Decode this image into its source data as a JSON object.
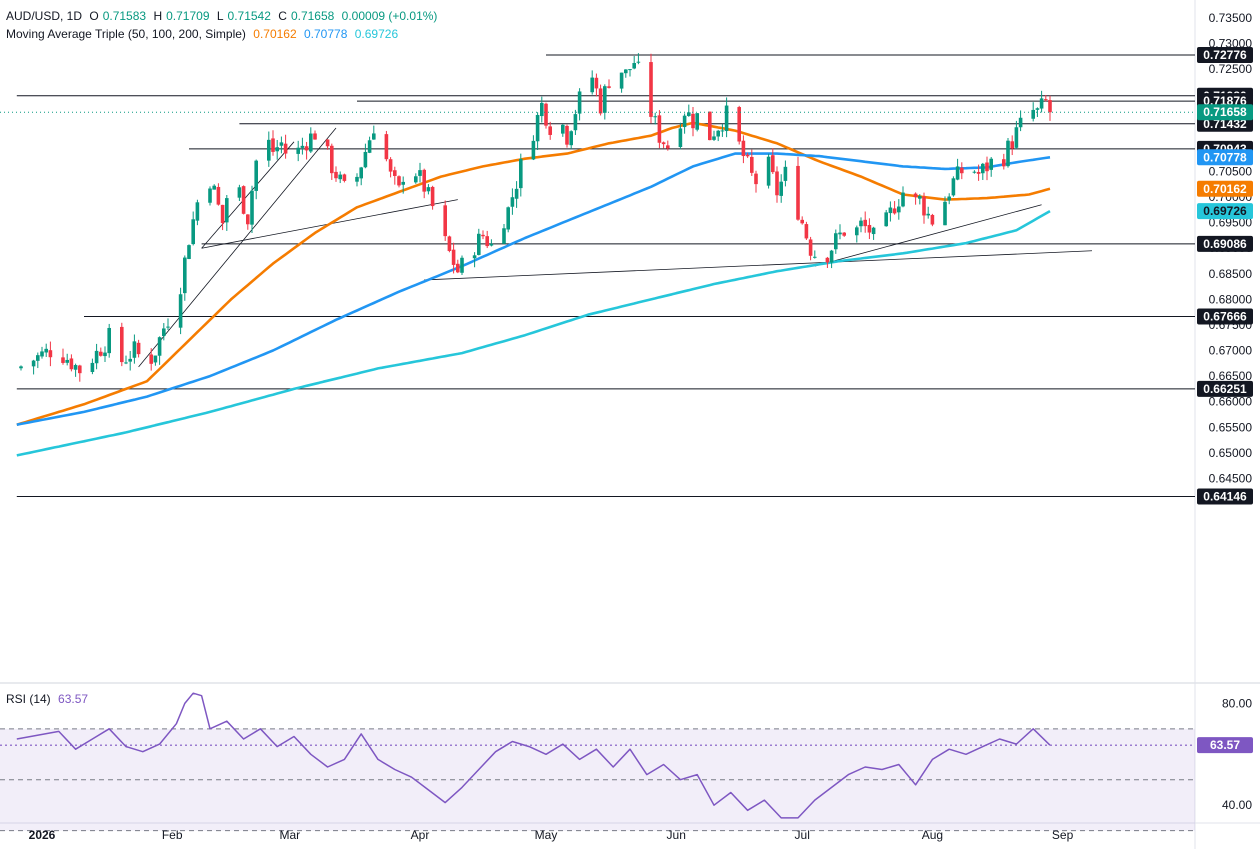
{
  "header": {
    "symbol": "AUD/USD, 1D",
    "ohlc": [
      {
        "label": "O",
        "value": "0.71583"
      },
      {
        "label": "H",
        "value": "0.71709"
      },
      {
        "label": "L",
        "value": "0.71542"
      },
      {
        "label": "C",
        "value": "0.71658"
      }
    ],
    "change": "0.00009 (+0.01%)",
    "ma_label": "Moving Average Triple (50, 100, 200, Simple)",
    "ma_values": [
      "0.70162",
      "0.70778",
      "0.69726"
    ],
    "rsi_label": "RSI (14)",
    "rsi_value": "63.57"
  },
  "colors": {
    "up": "#089981",
    "down": "#f23645",
    "ma50": "#f57c00",
    "ma100": "#2196f3",
    "ma200": "#26c6da",
    "rsi": "#7e57c2",
    "axis_text": "#131722"
  },
  "chart_data": {
    "type": "candlestick",
    "ylim": [
      0.6385,
      0.7375
    ],
    "price_ticks": [
      "0.73500",
      "0.73000",
      "0.72500",
      "0.72000",
      "0.71500",
      "0.71000",
      "0.70500",
      "0.70000",
      "0.69500",
      "0.69000",
      "0.68500",
      "0.68000",
      "0.67500",
      "0.67000",
      "0.66500",
      "0.66000",
      "0.65500",
      "0.65000",
      "0.64500"
    ],
    "x_labels": [
      {
        "label": "2026",
        "day": 0
      },
      {
        "label": "Feb",
        "day": 31
      },
      {
        "label": "Mar",
        "day": 59
      },
      {
        "label": "Apr",
        "day": 90
      },
      {
        "label": "May",
        "day": 120
      },
      {
        "label": "Jun",
        "day": 151
      },
      {
        "label": "Jul",
        "day": 181
      },
      {
        "label": "Aug",
        "day": 212
      },
      {
        "label": "Sep",
        "day": 243
      }
    ],
    "last_day": 240,
    "last_close": 0.71658,
    "candle_path": [
      [
        -6,
        0.6665
      ],
      [
        3,
        0.6705
      ],
      [
        6,
        0.6685
      ],
      [
        9,
        0.6662
      ],
      [
        13,
        0.6695
      ],
      [
        16,
        0.6725
      ],
      [
        19,
        0.668
      ],
      [
        22,
        0.67
      ],
      [
        25,
        0.6672
      ],
      [
        27,
        0.67
      ],
      [
        29,
        0.6745
      ],
      [
        31,
        0.678
      ],
      [
        33,
        0.683
      ],
      [
        35,
        0.692
      ],
      [
        37,
        0.699
      ],
      [
        39,
        0.706
      ],
      [
        41,
        0.701
      ],
      [
        43,
        0.695
      ],
      [
        45,
        0.705
      ],
      [
        47,
        0.701
      ],
      [
        49,
        0.696
      ],
      [
        51,
        0.707
      ],
      [
        53,
        0.712
      ],
      [
        55,
        0.709
      ],
      [
        57,
        0.7105
      ],
      [
        59,
        0.707
      ],
      [
        61,
        0.709
      ],
      [
        63,
        0.711
      ],
      [
        65,
        0.7125
      ],
      [
        67,
        0.71
      ],
      [
        69,
        0.706
      ],
      [
        71,
        0.703
      ],
      [
        73,
        0.7
      ],
      [
        75,
        0.704
      ],
      [
        77,
        0.709
      ],
      [
        79,
        0.714
      ],
      [
        81,
        0.7105
      ],
      [
        83,
        0.704
      ],
      [
        85,
        0.701
      ],
      [
        87,
        0.708
      ],
      [
        89,
        0.705
      ],
      [
        91,
        0.702
      ],
      [
        93,
        0.698
      ],
      [
        95,
        0.693
      ],
      [
        97,
        0.689
      ],
      [
        99,
        0.6855
      ],
      [
        101,
        0.6875
      ],
      [
        103,
        0.6905
      ],
      [
        105,
        0.6925
      ],
      [
        107,
        0.6905
      ],
      [
        109,
        0.6945
      ],
      [
        111,
        0.6975
      ],
      [
        113,
        0.703
      ],
      [
        115,
        0.709
      ],
      [
        117,
        0.713
      ],
      [
        119,
        0.718
      ],
      [
        121,
        0.714
      ],
      [
        123,
        0.716
      ],
      [
        125,
        0.712
      ],
      [
        127,
        0.717
      ],
      [
        129,
        0.721
      ],
      [
        131,
        0.7235
      ],
      [
        133,
        0.718
      ],
      [
        135,
        0.723
      ],
      [
        137,
        0.7255
      ],
      [
        139,
        0.724
      ],
      [
        141,
        0.7265
      ],
      [
        143,
        0.7225
      ],
      [
        145,
        0.7165
      ],
      [
        147,
        0.712
      ],
      [
        149,
        0.71
      ],
      [
        151,
        0.714
      ],
      [
        153,
        0.717
      ],
      [
        155,
        0.715
      ],
      [
        157,
        0.7165
      ],
      [
        159,
        0.712
      ],
      [
        161,
        0.714
      ],
      [
        163,
        0.716
      ],
      [
        165,
        0.712
      ],
      [
        167,
        0.708
      ],
      [
        169,
        0.704
      ],
      [
        171,
        0.702
      ],
      [
        173,
        0.706
      ],
      [
        175,
        0.701
      ],
      [
        177,
        0.7045
      ],
      [
        179,
        0.7
      ],
      [
        181,
        0.695
      ],
      [
        183,
        0.69
      ],
      [
        185,
        0.688
      ],
      [
        187,
        0.689
      ],
      [
        189,
        0.6915
      ],
      [
        191,
        0.6935
      ],
      [
        193,
        0.6925
      ],
      [
        195,
        0.6945
      ],
      [
        197,
        0.6935
      ],
      [
        199,
        0.6905
      ],
      [
        201,
        0.695
      ],
      [
        203,
        0.6985
      ],
      [
        205,
        0.701
      ],
      [
        207,
        0.6985
      ],
      [
        209,
        0.6995
      ],
      [
        211,
        0.6965
      ],
      [
        213,
        0.6945
      ],
      [
        215,
        0.6995
      ],
      [
        217,
        0.703
      ],
      [
        219,
        0.705
      ],
      [
        221,
        0.706
      ],
      [
        223,
        0.7045
      ],
      [
        225,
        0.706
      ],
      [
        227,
        0.7075
      ],
      [
        229,
        0.708
      ],
      [
        231,
        0.711
      ],
      [
        233,
        0.714
      ],
      [
        235,
        0.717
      ],
      [
        237,
        0.7165
      ],
      [
        239,
        0.7185
      ],
      [
        240,
        0.71658
      ]
    ],
    "ma_series": [
      {
        "values": [
          [
            -6,
            0.6555
          ],
          [
            10,
            0.6595
          ],
          [
            25,
            0.664
          ],
          [
            35,
            0.672
          ],
          [
            45,
            0.68
          ],
          [
            55,
            0.687
          ],
          [
            65,
            0.693
          ],
          [
            75,
            0.698
          ],
          [
            85,
            0.701
          ],
          [
            95,
            0.704
          ],
          [
            105,
            0.706
          ],
          [
            115,
            0.7075
          ],
          [
            125,
            0.7085
          ],
          [
            135,
            0.7105
          ],
          [
            145,
            0.712
          ],
          [
            150,
            0.7135
          ],
          [
            155,
            0.7145
          ],
          [
            165,
            0.713
          ],
          [
            175,
            0.7105
          ],
          [
            185,
            0.707
          ],
          [
            195,
            0.704
          ],
          [
            205,
            0.7005
          ],
          [
            215,
            0.6995
          ],
          [
            225,
            0.6998
          ],
          [
            235,
            0.7005
          ],
          [
            240,
            0.70162
          ]
        ],
        "color_key": "ma50"
      },
      {
        "values": [
          [
            -6,
            0.6555
          ],
          [
            10,
            0.658
          ],
          [
            25,
            0.661
          ],
          [
            40,
            0.665
          ],
          [
            55,
            0.67
          ],
          [
            70,
            0.676
          ],
          [
            85,
            0.6815
          ],
          [
            100,
            0.6865
          ],
          [
            115,
            0.692
          ],
          [
            130,
            0.697
          ],
          [
            145,
            0.702
          ],
          [
            155,
            0.706
          ],
          [
            165,
            0.7085
          ],
          [
            175,
            0.7085
          ],
          [
            185,
            0.708
          ],
          [
            195,
            0.707
          ],
          [
            205,
            0.706
          ],
          [
            215,
            0.7055
          ],
          [
            225,
            0.7058
          ],
          [
            232,
            0.7068
          ],
          [
            240,
            0.70778
          ]
        ],
        "color_key": "ma100"
      },
      {
        "values": [
          [
            -6,
            0.6495
          ],
          [
            20,
            0.654
          ],
          [
            40,
            0.658
          ],
          [
            60,
            0.6625
          ],
          [
            80,
            0.6665
          ],
          [
            100,
            0.6695
          ],
          [
            115,
            0.673
          ],
          [
            130,
            0.677
          ],
          [
            145,
            0.68
          ],
          [
            160,
            0.683
          ],
          [
            175,
            0.6855
          ],
          [
            190,
            0.6875
          ],
          [
            205,
            0.689
          ],
          [
            220,
            0.691
          ],
          [
            232,
            0.6935
          ],
          [
            240,
            0.69726
          ]
        ],
        "color_key": "ma200"
      }
    ],
    "h_levels": [
      {
        "price": "0.72776",
        "value": 0.72776,
        "from_day": 120
      },
      {
        "price": "0.71980",
        "value": 0.7198,
        "from_day": -6
      },
      {
        "price": "0.71876",
        "value": 0.71876,
        "from_day": 75
      },
      {
        "price": "0.71432",
        "value": 0.71432,
        "from_day": 47
      },
      {
        "price": "0.70943",
        "value": 0.70943,
        "from_day": 35
      },
      {
        "price": "0.69086",
        "value": 0.69086,
        "from_day": 38
      },
      {
        "price": "0.67666",
        "value": 0.67666,
        "from_day": 10
      },
      {
        "price": "0.66251",
        "value": 0.66251,
        "from_day": -6
      },
      {
        "price": "0.64146",
        "value": 0.64146,
        "from_day": -6
      }
    ],
    "trend_lines": [
      [
        [
          23,
          0.6668
        ],
        [
          70,
          0.7135
        ]
      ],
      [
        [
          38,
          0.69
        ],
        [
          60,
          0.7108
        ]
      ],
      [
        [
          38,
          0.69
        ],
        [
          99,
          0.6995
        ]
      ],
      [
        [
          91,
          0.6838
        ],
        [
          250,
          0.6895
        ]
      ],
      [
        [
          184,
          0.6865
        ],
        [
          238,
          0.6985
        ]
      ]
    ],
    "rsi": {
      "ylim": [
        33,
        88
      ],
      "ticks": [
        "80.00",
        "40.00"
      ],
      "ob": 70,
      "os": 30,
      "mid": 63.57,
      "values": [
        [
          -6,
          66
        ],
        [
          4,
          69
        ],
        [
          8,
          62
        ],
        [
          12,
          66
        ],
        [
          16,
          70
        ],
        [
          20,
          63
        ],
        [
          24,
          61
        ],
        [
          28,
          64
        ],
        [
          32,
          72
        ],
        [
          34,
          80
        ],
        [
          36,
          84
        ],
        [
          38,
          83
        ],
        [
          40,
          70
        ],
        [
          44,
          73
        ],
        [
          48,
          66
        ],
        [
          52,
          70
        ],
        [
          56,
          63
        ],
        [
          60,
          67
        ],
        [
          64,
          60
        ],
        [
          68,
          55
        ],
        [
          72,
          58
        ],
        [
          76,
          68
        ],
        [
          80,
          58
        ],
        [
          84,
          54
        ],
        [
          88,
          51
        ],
        [
          92,
          46
        ],
        [
          96,
          41
        ],
        [
          100,
          47
        ],
        [
          104,
          54
        ],
        [
          108,
          61
        ],
        [
          112,
          65
        ],
        [
          116,
          63
        ],
        [
          120,
          60
        ],
        [
          124,
          64
        ],
        [
          128,
          58
        ],
        [
          132,
          62
        ],
        [
          136,
          55
        ],
        [
          140,
          62
        ],
        [
          144,
          52
        ],
        [
          148,
          56
        ],
        [
          152,
          50
        ],
        [
          156,
          52
        ],
        [
          160,
          40
        ],
        [
          164,
          45
        ],
        [
          168,
          38
        ],
        [
          172,
          42
        ],
        [
          176,
          35
        ],
        [
          180,
          35
        ],
        [
          184,
          42
        ],
        [
          188,
          47
        ],
        [
          192,
          52
        ],
        [
          196,
          55
        ],
        [
          200,
          54
        ],
        [
          204,
          56
        ],
        [
          208,
          48
        ],
        [
          212,
          58
        ],
        [
          216,
          62
        ],
        [
          220,
          60
        ],
        [
          224,
          63
        ],
        [
          228,
          66
        ],
        [
          232,
          64
        ],
        [
          236,
          70
        ],
        [
          240,
          63.57
        ]
      ]
    }
  }
}
